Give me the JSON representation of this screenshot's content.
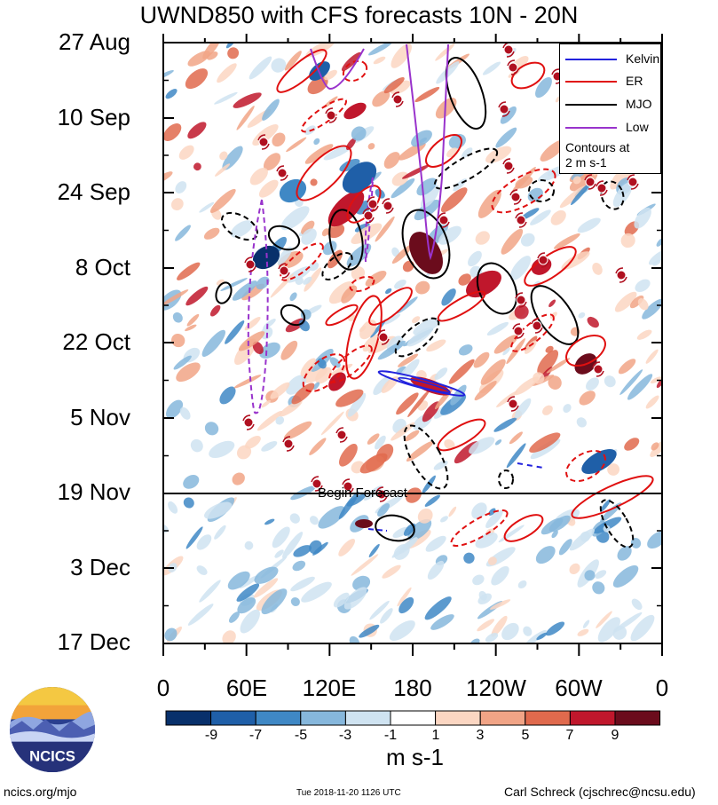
{
  "title": "UWND850 with CFS forecasts  10N - 20N",
  "chart_data": {
    "type": "heatmap",
    "title": "UWND850 with CFS forecasts  10N - 20N",
    "y_axis": {
      "label": "",
      "ticks": [
        "27 Aug",
        "10 Sep",
        "24 Sep",
        "8 Oct",
        "22 Oct",
        "5 Nov",
        "19 Nov",
        "3 Dec",
        "17 Dec"
      ],
      "range": [
        "27 Aug",
        "17 Dec"
      ],
      "direction": "time increases downward"
    },
    "x_axis": {
      "label": "",
      "ticks": [
        "0",
        "60E",
        "120E",
        "180",
        "120W",
        "60W",
        "0"
      ],
      "range_degrees_east": [
        0,
        360
      ]
    },
    "forecast_start": "19 Nov",
    "forecast_label": "Begin Forecast",
    "colorbar": {
      "labels": [
        "-9",
        "-7",
        "-5",
        "-3",
        "-1",
        "1",
        "3",
        "5",
        "7",
        "9"
      ],
      "units": "m s-1",
      "colors": [
        "#08306b",
        "#1f5fa8",
        "#3f88c5",
        "#86b7dc",
        "#cfe3f1",
        "#ffffff",
        "#fbd6c2",
        "#f1a486",
        "#e06a4d",
        "#c0172c",
        "#6b0c1c"
      ]
    },
    "legend": {
      "position": "top-right",
      "entries": [
        {
          "name": "Kelvin",
          "color": "#2222dd"
        },
        {
          "name": "ER",
          "color": "#e01010"
        },
        {
          "name": "MJO",
          "color": "#000000"
        },
        {
          "name": "Low",
          "color": "#9933cc"
        }
      ],
      "note_lines": [
        "Contours at",
        "2 m s-1"
      ]
    },
    "grid": false
  },
  "footer": {
    "url": "ncics.org/mjo",
    "timestamp": "Tue 2018-11-20 1126 UTC",
    "author": "Carl Schreck (cjschrec@ncsu.edu)"
  },
  "logo_text": "NCICS"
}
